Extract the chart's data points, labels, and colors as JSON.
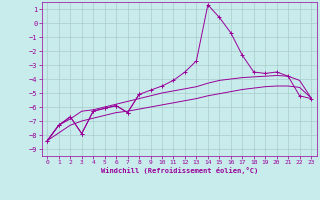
{
  "xlabel": "Windchill (Refroidissement éolien,°C)",
  "bg_color": "#c8ecec",
  "line_color": "#990099",
  "grid_color": "#aacccc",
  "xlim": [
    -0.5,
    23.5
  ],
  "ylim": [
    -9.5,
    1.5
  ],
  "xticks": [
    0,
    1,
    2,
    3,
    4,
    5,
    6,
    7,
    8,
    9,
    10,
    11,
    12,
    13,
    14,
    15,
    16,
    17,
    18,
    19,
    20,
    21,
    22,
    23
  ],
  "yticks": [
    -9,
    -8,
    -7,
    -6,
    -5,
    -4,
    -3,
    -2,
    -1,
    0,
    1
  ],
  "series_marked": [
    [
      0,
      -8.4
    ],
    [
      1,
      -7.3
    ],
    [
      2,
      -6.7
    ],
    [
      3,
      -7.9
    ],
    [
      4,
      -6.3
    ],
    [
      5,
      -6.1
    ],
    [
      6,
      -5.9
    ],
    [
      7,
      -6.4
    ],
    [
      8,
      -5.1
    ],
    [
      9,
      -4.8
    ],
    [
      10,
      -4.5
    ],
    [
      11,
      -4.1
    ],
    [
      12,
      -3.5
    ],
    [
      13,
      -2.7
    ],
    [
      14,
      1.3
    ],
    [
      15,
      0.4
    ],
    [
      16,
      -0.7
    ],
    [
      17,
      -2.3
    ],
    [
      18,
      -3.5
    ],
    [
      19,
      -3.6
    ],
    [
      20,
      -3.5
    ],
    [
      21,
      -3.8
    ],
    [
      22,
      -5.2
    ],
    [
      23,
      -5.4
    ]
  ],
  "series_smooth1": [
    [
      0,
      -8.4
    ],
    [
      1,
      -7.3
    ],
    [
      2,
      -6.85
    ],
    [
      3,
      -6.3
    ],
    [
      4,
      -6.2
    ],
    [
      5,
      -6.0
    ],
    [
      6,
      -5.8
    ],
    [
      7,
      -5.6
    ],
    [
      8,
      -5.4
    ],
    [
      9,
      -5.2
    ],
    [
      10,
      -5.0
    ],
    [
      11,
      -4.85
    ],
    [
      12,
      -4.7
    ],
    [
      13,
      -4.55
    ],
    [
      14,
      -4.3
    ],
    [
      15,
      -4.1
    ],
    [
      16,
      -4.0
    ],
    [
      17,
      -3.9
    ],
    [
      18,
      -3.85
    ],
    [
      19,
      -3.8
    ],
    [
      20,
      -3.75
    ],
    [
      21,
      -3.8
    ],
    [
      22,
      -4.1
    ],
    [
      23,
      -5.35
    ]
  ],
  "series_smooth2": [
    [
      0,
      -8.4
    ],
    [
      1,
      -7.85
    ],
    [
      2,
      -7.3
    ],
    [
      3,
      -7.0
    ],
    [
      4,
      -6.8
    ],
    [
      5,
      -6.6
    ],
    [
      6,
      -6.4
    ],
    [
      7,
      -6.3
    ],
    [
      8,
      -6.15
    ],
    [
      9,
      -6.0
    ],
    [
      10,
      -5.85
    ],
    [
      11,
      -5.7
    ],
    [
      12,
      -5.55
    ],
    [
      13,
      -5.4
    ],
    [
      14,
      -5.2
    ],
    [
      15,
      -5.05
    ],
    [
      16,
      -4.9
    ],
    [
      17,
      -4.75
    ],
    [
      18,
      -4.65
    ],
    [
      19,
      -4.55
    ],
    [
      20,
      -4.5
    ],
    [
      21,
      -4.5
    ],
    [
      22,
      -4.6
    ],
    [
      23,
      -5.35
    ]
  ],
  "series_partial_marked": [
    [
      0,
      -8.4
    ],
    [
      1,
      -7.3
    ],
    [
      2,
      -6.7
    ],
    [
      3,
      -7.9
    ],
    [
      4,
      -6.3
    ],
    [
      5,
      -6.1
    ],
    [
      6,
      -5.9
    ],
    [
      7,
      -6.4
    ],
    [
      8,
      -5.1
    ]
  ]
}
